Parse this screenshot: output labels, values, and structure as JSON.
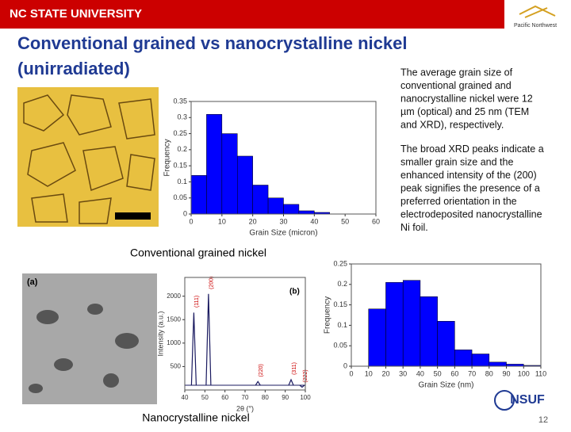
{
  "header": {
    "university": "NC STATE UNIVERSITY",
    "partner": "Pacific Northwest"
  },
  "title_lines": [
    "Conventional grained vs nanocrystalline nickel",
    "(unirradiated)"
  ],
  "paragraphs": [
    [
      "The average grain size of",
      "conventional grained and",
      "nanocrystalline nickel were 12",
      "µm (optical) and 25 nm (TEM",
      "and XRD), respectively."
    ],
    [
      "The broad XRD peaks indicate a",
      "smaller grain size and the",
      "enhanced intensity of the (200)",
      "peak signifies the presence of a",
      "preferred orientation in the",
      "electrodeposited nanocrystalline",
      "Ni foil."
    ]
  ],
  "captions": {
    "conventional": "Conventional grained nickel",
    "nano": "Nanocrystalline nickel"
  },
  "histograms": [
    {
      "type": "histogram",
      "xlabel": "Grain Size (micron)",
      "ylabel": "Frequency",
      "color": "#0000ff",
      "bins": [
        0,
        5,
        10,
        15,
        20,
        25,
        30,
        35,
        40,
        45
      ],
      "values": [
        0.12,
        0.31,
        0.25,
        0.18,
        0.09,
        0.05,
        0.03,
        0.01,
        0.005
      ],
      "xlim": [
        0,
        60
      ],
      "xticks": [
        0,
        10,
        20,
        30,
        40,
        50,
        60
      ],
      "ylim": [
        0,
        0.35
      ],
      "yticks": [
        0,
        0.05,
        0.1,
        0.15,
        0.2,
        0.25,
        0.3,
        0.35
      ]
    },
    {
      "type": "histogram",
      "xlabel": "Grain Size (nm)",
      "ylabel": "Frequency",
      "color": "#0000ff",
      "bins": [
        10,
        20,
        30,
        40,
        50,
        60,
        70,
        80,
        90,
        100,
        110
      ],
      "values": [
        0.14,
        0.205,
        0.21,
        0.17,
        0.11,
        0.04,
        0.03,
        0.01,
        0.005,
        0.002
      ],
      "xlim": [
        0,
        110
      ],
      "xticks": [
        0,
        10,
        20,
        30,
        40,
        50,
        60,
        70,
        80,
        90,
        100,
        110
      ],
      "ylim": [
        0,
        0.25
      ],
      "yticks": [
        0,
        0.05,
        0.1,
        0.15,
        0.2,
        0.25
      ]
    }
  ],
  "xrd": {
    "type": "peaks",
    "panel_label": "(b)",
    "xlabel": "2θ (°)",
    "ylabel": "Intensity (a.u.)",
    "color": "#1a1a60",
    "x": [
      44.5,
      51.8,
      76.4,
      92.9,
      98.4
    ],
    "values": [
      1650,
      2050,
      180,
      220,
      60
    ],
    "peak_labels": [
      "(111)",
      "(200)",
      "(220)",
      "(311)",
      "(222)"
    ],
    "xlim": [
      40,
      100
    ],
    "xticks": [
      40,
      50,
      60,
      70,
      80,
      90,
      100
    ],
    "ylim": [
      0,
      2400
    ],
    "yticks": [
      500,
      1000,
      1500,
      2000
    ]
  },
  "micrograph_label": "(a)",
  "footer": {
    "logo": "NSUF",
    "page": "12"
  }
}
